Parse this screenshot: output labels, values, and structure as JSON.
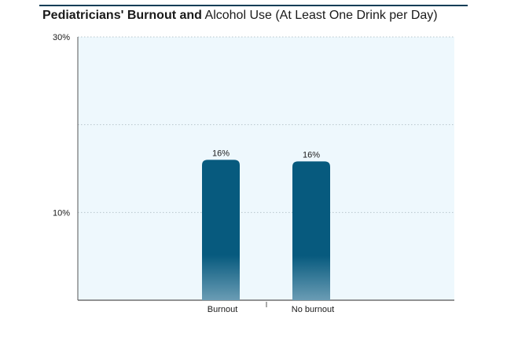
{
  "chart_data": {
    "type": "bar",
    "title_bold": "Pediatricians' Burnout and",
    "title_rest": " Alcohol Use (At Least One Drink per Day)",
    "categories": [
      "Burnout",
      "No burnout"
    ],
    "values": [
      16,
      16
    ],
    "value_labels": [
      "16%",
      "16%"
    ],
    "ylim": [
      0,
      30
    ],
    "y_tick_labels": [
      {
        "value": 30,
        "label": "30%"
      },
      {
        "value": 10,
        "label": "10%"
      }
    ],
    "gridline_values": [
      30,
      20,
      10
    ],
    "grid": true,
    "colors": {
      "bar_top": "#075a7e",
      "bar_bottom": "#6a9cb4",
      "plot_background": "#eef8fd",
      "gridline": "#b8c6cc",
      "axis": "#555555",
      "title_rule": "#0e3d57"
    }
  }
}
